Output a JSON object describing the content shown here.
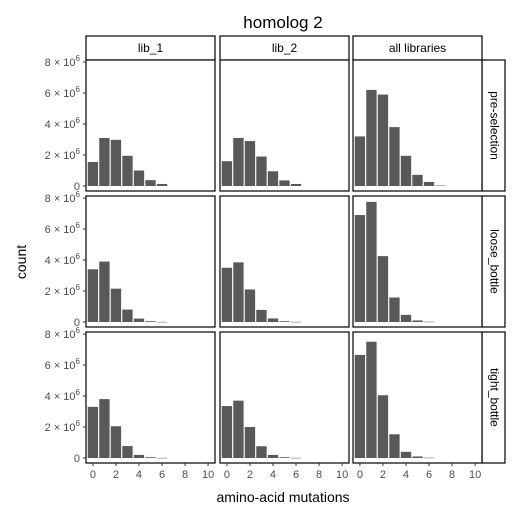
{
  "chart_data": {
    "type": "bar",
    "title": "homolog 2",
    "xlabel": "amino-acid mutations",
    "ylabel": "count",
    "x_ticks": [
      "0",
      "2",
      "4",
      "6",
      "8",
      "10"
    ],
    "y_ticks": [
      {
        "base": "0",
        "exp": ""
      },
      {
        "base": "2 × 10",
        "exp": "6"
      },
      {
        "base": "4 × 10",
        "exp": "6"
      },
      {
        "base": "6 × 10",
        "exp": "6"
      },
      {
        "base": "8 × 10",
        "exp": "6"
      }
    ],
    "xlim": [
      -0.6,
      10.6
    ],
    "ylim": [
      0,
      8000000
    ],
    "grid": false,
    "bar_color": "#595959",
    "column_facets": [
      "lib_1",
      "lib_2",
      "all libraries"
    ],
    "row_facets": [
      "pre-selection",
      "loose_bottle",
      "tight_bottle"
    ],
    "x": [
      0,
      1,
      2,
      3,
      4,
      5,
      6,
      7,
      8,
      9,
      10
    ],
    "panels": [
      {
        "row": "pre-selection",
        "col": "lib_1",
        "values": [
          1550000,
          3100000,
          2980000,
          1950000,
          1000000,
          380000,
          130000,
          0,
          0,
          0,
          0
        ]
      },
      {
        "row": "pre-selection",
        "col": "lib_2",
        "values": [
          1600000,
          3100000,
          2900000,
          1900000,
          950000,
          360000,
          130000,
          0,
          0,
          0,
          0
        ]
      },
      {
        "row": "pre-selection",
        "col": "all libraries",
        "values": [
          3200000,
          6200000,
          5900000,
          3800000,
          1950000,
          720000,
          260000,
          30000,
          0,
          0,
          0
        ]
      },
      {
        "row": "loose_bottle",
        "col": "lib_1",
        "values": [
          3400000,
          3900000,
          2150000,
          800000,
          220000,
          50000,
          10000,
          0,
          0,
          0,
          0
        ]
      },
      {
        "row": "loose_bottle",
        "col": "lib_2",
        "values": [
          3500000,
          3850000,
          2100000,
          780000,
          230000,
          50000,
          10000,
          0,
          0,
          0,
          0
        ]
      },
      {
        "row": "loose_bottle",
        "col": "all libraries",
        "values": [
          6900000,
          7750000,
          4250000,
          1580000,
          460000,
          100000,
          20000,
          0,
          0,
          0,
          0
        ]
      },
      {
        "row": "tight_bottle",
        "col": "lib_1",
        "values": [
          3300000,
          3800000,
          2050000,
          770000,
          200000,
          50000,
          10000,
          0,
          0,
          0,
          0
        ]
      },
      {
        "row": "tight_bottle",
        "col": "lib_2",
        "values": [
          3350000,
          3700000,
          2000000,
          760000,
          200000,
          50000,
          10000,
          0,
          0,
          0,
          0
        ]
      },
      {
        "row": "tight_bottle",
        "col": "all libraries",
        "values": [
          6650000,
          7500000,
          4050000,
          1530000,
          400000,
          100000,
          20000,
          0,
          0,
          0,
          0
        ]
      }
    ]
  }
}
